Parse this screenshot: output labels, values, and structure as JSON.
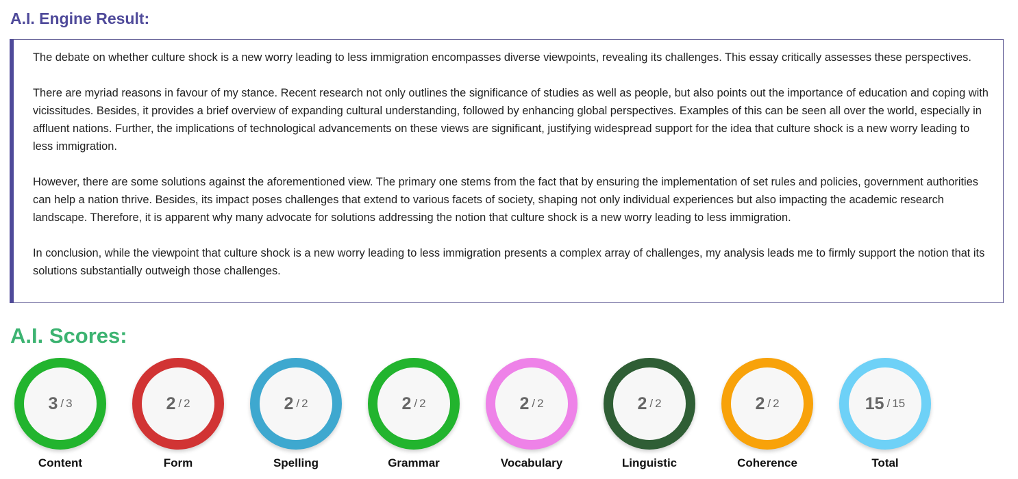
{
  "engine": {
    "title": "A.I. Engine Result:",
    "paragraphs": [
      "The debate on whether culture shock is a new worry leading to less immigration encompasses diverse viewpoints, revealing its challenges. This essay critically assesses these perspectives.",
      "There are myriad reasons in favour of my stance. Recent research not only outlines the significance of studies as well as people, but also points out the importance of education and coping with vicissitudes. Besides, it provides a brief overview of expanding cultural understanding, followed by enhancing global perspectives. Examples of this can be seen all over the world, especially in affluent nations. Further, the implications of technological advancements on these views are significant, justifying widespread support for the idea that culture shock is a new worry leading to less immigration.",
      "However, there are some solutions against the aforementioned view. The primary one stems from the fact that by ensuring the implementation of set rules and policies, government authorities can help a nation thrive. Besides, its impact poses challenges that extend to various facets of society, shaping not only individual experiences but also impacting the academic research landscape. Therefore, it is apparent why many advocate for solutions addressing the notion that culture shock is a new worry leading to less immigration.",
      "In conclusion, while the viewpoint that culture shock is a new worry leading to less immigration presents a complex array of challenges, my analysis leads me to firmly support the notion that its solutions substantially outweigh those challenges."
    ]
  },
  "scores": {
    "title": "A.I. Scores:",
    "separator": "/",
    "items": [
      {
        "label": "Content",
        "score": "3",
        "max": "3",
        "color": "#22b42e"
      },
      {
        "label": "Form",
        "score": "2",
        "max": "2",
        "color": "#d13434"
      },
      {
        "label": "Spelling",
        "score": "2",
        "max": "2",
        "color": "#3ea8cf"
      },
      {
        "label": "Grammar",
        "score": "2",
        "max": "2",
        "color": "#22b42e"
      },
      {
        "label": "Vocabulary",
        "score": "2",
        "max": "2",
        "color": "#ee82e8"
      },
      {
        "label": "Linguistic",
        "score": "2",
        "max": "2",
        "color": "#2f5e35"
      },
      {
        "label": "Coherence",
        "score": "2",
        "max": "2",
        "color": "#f8a20a"
      },
      {
        "label": "Total",
        "score": "15",
        "max": "15",
        "color": "#6ed1f7"
      }
    ]
  }
}
